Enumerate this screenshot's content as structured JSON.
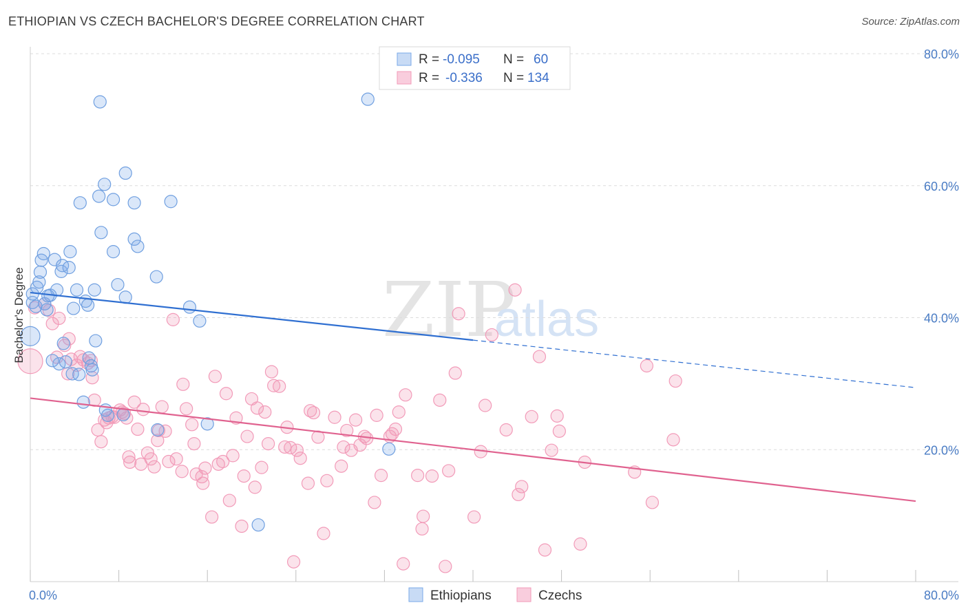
{
  "title": "ETHIOPIAN VS CZECH BACHELOR'S DEGREE CORRELATION CHART",
  "source": "Source: ZipAtlas.com",
  "watermark": {
    "zip": "ZIP",
    "atlas": "atlas"
  },
  "legend_box": {
    "r_label": "R =",
    "n_label": "N =",
    "rows": [
      {
        "r": "-0.095",
        "n": "60"
      },
      {
        "r": "-0.336",
        "n": "134"
      }
    ]
  },
  "colors": {
    "ethiopians": "#7aaae8",
    "czechs": "#f29ab8",
    "eth_line": "#2f6fd1",
    "cz_line": "#e0628f"
  },
  "chart_data": {
    "type": "scatter",
    "title": "ETHIOPIAN VS CZECH BACHELOR'S DEGREE CORRELATION CHART",
    "xlabel": "",
    "ylabel": "Bachelor's Degree",
    "xlim": [
      0,
      80
    ],
    "ylim": [
      0,
      80
    ],
    "x_tick_labels": [
      "0.0%",
      "80.0%"
    ],
    "y_tick_labels": [
      "20.0%",
      "40.0%",
      "60.0%",
      "80.0%"
    ],
    "y_ticks": [
      20,
      40,
      60,
      80
    ],
    "grid": true,
    "legend_position": "top-center",
    "series": [
      {
        "name": "Ethiopians",
        "r": -0.095,
        "n": 60,
        "trend": {
          "x0": 0,
          "y0": 43.8,
          "x1": 40,
          "y1": 36.6,
          "dash_to_x": 80,
          "dash_y": 29.4
        },
        "points": [
          [
            0.0,
            37.2
          ],
          [
            0.2,
            42.3
          ],
          [
            0.6,
            44.6
          ],
          [
            0.8,
            45.4
          ],
          [
            0.9,
            46.9
          ],
          [
            1.0,
            48.7
          ],
          [
            1.2,
            49.7
          ],
          [
            1.3,
            42.1
          ],
          [
            1.5,
            41.2
          ],
          [
            1.8,
            43.4
          ],
          [
            2.2,
            48.8
          ],
          [
            2.4,
            44.2
          ],
          [
            2.6,
            33.0
          ],
          [
            2.8,
            47.0
          ],
          [
            2.9,
            47.9
          ],
          [
            3.0,
            36.1
          ],
          [
            3.2,
            33.3
          ],
          [
            3.5,
            47.6
          ],
          [
            3.6,
            50.0
          ],
          [
            3.8,
            31.5
          ],
          [
            3.9,
            41.4
          ],
          [
            4.2,
            44.2
          ],
          [
            4.4,
            31.4
          ],
          [
            4.5,
            57.4
          ],
          [
            4.8,
            27.2
          ],
          [
            5.0,
            42.5
          ],
          [
            5.2,
            41.9
          ],
          [
            5.3,
            33.9
          ],
          [
            5.5,
            32.7
          ],
          [
            5.6,
            32.1
          ],
          [
            5.8,
            44.2
          ],
          [
            5.9,
            36.5
          ],
          [
            6.2,
            58.4
          ],
          [
            6.3,
            72.7
          ],
          [
            6.4,
            52.9
          ],
          [
            6.7,
            60.2
          ],
          [
            6.8,
            26.0
          ],
          [
            7.0,
            25.2
          ],
          [
            7.5,
            57.9
          ],
          [
            7.5,
            50.0
          ],
          [
            7.9,
            45.0
          ],
          [
            8.4,
            25.3
          ],
          [
            8.6,
            43.1
          ],
          [
            8.6,
            61.9
          ],
          [
            9.4,
            51.9
          ],
          [
            9.4,
            57.4
          ],
          [
            9.7,
            50.8
          ],
          [
            11.4,
            46.2
          ],
          [
            11.5,
            23.0
          ],
          [
            12.7,
            57.6
          ],
          [
            14.4,
            41.6
          ],
          [
            15.3,
            39.5
          ],
          [
            16.0,
            23.9
          ],
          [
            20.6,
            8.6
          ],
          [
            30.5,
            73.1
          ],
          [
            32.4,
            20.1
          ],
          [
            0.2,
            43.6
          ],
          [
            0.5,
            41.7
          ],
          [
            1.6,
            43.3
          ],
          [
            2.0,
            33.5
          ]
        ]
      },
      {
        "name": "Czechs",
        "r": -0.336,
        "n": 134,
        "trend": {
          "x0": 0,
          "y0": 27.8,
          "x1": 80,
          "y1": 12.2
        },
        "points": [
          [
            0.0,
            33.4
          ],
          [
            0.4,
            41.5
          ],
          [
            1.3,
            42.1
          ],
          [
            1.7,
            41.1
          ],
          [
            2.0,
            39.1
          ],
          [
            2.4,
            34.0
          ],
          [
            2.6,
            39.9
          ],
          [
            3.1,
            35.8
          ],
          [
            3.4,
            31.5
          ],
          [
            3.5,
            36.8
          ],
          [
            3.7,
            33.7
          ],
          [
            4.2,
            32.8
          ],
          [
            4.5,
            34.1
          ],
          [
            4.8,
            33.6
          ],
          [
            5.2,
            33.1
          ],
          [
            5.5,
            33.5
          ],
          [
            5.6,
            30.9
          ],
          [
            5.8,
            27.5
          ],
          [
            6.1,
            23.0
          ],
          [
            6.4,
            21.2
          ],
          [
            6.7,
            24.5
          ],
          [
            6.9,
            24.1
          ],
          [
            7.1,
            24.8
          ],
          [
            7.4,
            25.0
          ],
          [
            7.6,
            24.9
          ],
          [
            8.1,
            26.0
          ],
          [
            8.3,
            25.7
          ],
          [
            8.5,
            25.5
          ],
          [
            8.7,
            24.8
          ],
          [
            8.9,
            18.9
          ],
          [
            9.0,
            18.1
          ],
          [
            9.4,
            27.2
          ],
          [
            9.7,
            23.1
          ],
          [
            10.0,
            17.8
          ],
          [
            10.2,
            26.1
          ],
          [
            10.6,
            19.5
          ],
          [
            10.9,
            18.6
          ],
          [
            11.2,
            17.4
          ],
          [
            11.5,
            21.4
          ],
          [
            11.6,
            22.9
          ],
          [
            11.9,
            26.5
          ],
          [
            12.2,
            22.8
          ],
          [
            12.5,
            18.2
          ],
          [
            12.9,
            39.7
          ],
          [
            13.2,
            18.6
          ],
          [
            13.7,
            16.7
          ],
          [
            13.8,
            29.9
          ],
          [
            14.1,
            26.2
          ],
          [
            14.6,
            23.8
          ],
          [
            14.8,
            20.9
          ],
          [
            15.0,
            16.3
          ],
          [
            15.5,
            15.9
          ],
          [
            15.6,
            14.9
          ],
          [
            15.8,
            17.2
          ],
          [
            16.4,
            9.8
          ],
          [
            16.7,
            31.1
          ],
          [
            17.0,
            17.8
          ],
          [
            17.4,
            18.2
          ],
          [
            17.7,
            28.5
          ],
          [
            18.0,
            12.3
          ],
          [
            18.3,
            19.1
          ],
          [
            18.6,
            24.8
          ],
          [
            19.1,
            8.4
          ],
          [
            19.3,
            16.0
          ],
          [
            19.6,
            22.0
          ],
          [
            20.0,
            27.7
          ],
          [
            20.3,
            14.3
          ],
          [
            20.5,
            26.3
          ],
          [
            20.9,
            17.3
          ],
          [
            21.2,
            25.7
          ],
          [
            21.5,
            20.9
          ],
          [
            21.8,
            31.8
          ],
          [
            22.0,
            29.7
          ],
          [
            22.5,
            29.6
          ],
          [
            23.0,
            20.4
          ],
          [
            23.2,
            23.4
          ],
          [
            23.5,
            20.3
          ],
          [
            23.8,
            3.0
          ],
          [
            24.1,
            19.9
          ],
          [
            24.4,
            18.7
          ],
          [
            25.1,
            14.9
          ],
          [
            25.3,
            25.9
          ],
          [
            25.6,
            25.6
          ],
          [
            26.0,
            21.9
          ],
          [
            26.5,
            7.3
          ],
          [
            26.8,
            15.3
          ],
          [
            27.5,
            24.9
          ],
          [
            28.1,
            17.5
          ],
          [
            28.3,
            20.4
          ],
          [
            28.6,
            22.9
          ],
          [
            29.0,
            19.9
          ],
          [
            29.4,
            24.5
          ],
          [
            29.8,
            20.7
          ],
          [
            30.2,
            22.0
          ],
          [
            30.4,
            21.7
          ],
          [
            31.1,
            12.0
          ],
          [
            31.3,
            25.2
          ],
          [
            31.7,
            16.1
          ],
          [
            32.5,
            22.0
          ],
          [
            32.7,
            22.4
          ],
          [
            33.0,
            23.1
          ],
          [
            33.3,
            25.7
          ],
          [
            33.7,
            2.7
          ],
          [
            33.9,
            28.3
          ],
          [
            35.0,
            16.1
          ],
          [
            35.4,
            8.0
          ],
          [
            35.5,
            9.9
          ],
          [
            36.3,
            16.0
          ],
          [
            37.0,
            27.5
          ],
          [
            37.5,
            2.3
          ],
          [
            37.8,
            16.8
          ],
          [
            38.4,
            31.6
          ],
          [
            38.7,
            40.6
          ],
          [
            40.1,
            9.8
          ],
          [
            40.7,
            19.7
          ],
          [
            41.1,
            26.7
          ],
          [
            41.7,
            37.4
          ],
          [
            43.0,
            23.0
          ],
          [
            43.8,
            44.2
          ],
          [
            44.1,
            13.2
          ],
          [
            44.4,
            14.4
          ],
          [
            45.3,
            25.0
          ],
          [
            46.5,
            4.8
          ],
          [
            47.1,
            19.9
          ],
          [
            47.6,
            25.1
          ],
          [
            47.8,
            22.8
          ],
          [
            49.7,
            5.7
          ],
          [
            50.1,
            18.1
          ],
          [
            46.0,
            34.1
          ],
          [
            54.6,
            16.6
          ],
          [
            55.7,
            32.7
          ],
          [
            56.2,
            12.0
          ],
          [
            58.1,
            21.5
          ],
          [
            58.3,
            30.4
          ]
        ]
      }
    ]
  },
  "bottom_legend": [
    {
      "label": "Ethiopians"
    },
    {
      "label": "Czechs"
    }
  ]
}
